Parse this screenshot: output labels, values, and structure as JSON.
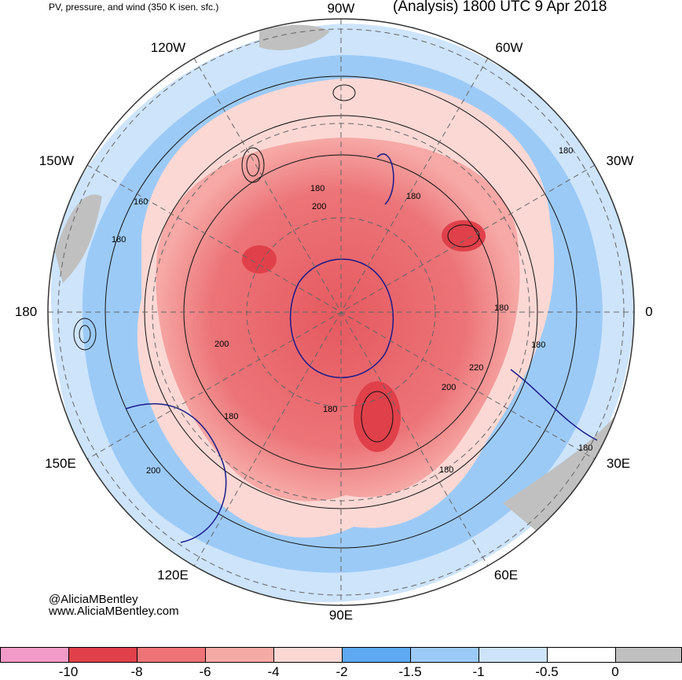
{
  "header": {
    "left_title": "PV, pressure, and wind (350 K isen. sfc.)",
    "right_title": "(Analysis) 1800 UTC 9 Apr 2018"
  },
  "longitude_labels": {
    "w90": "90W",
    "w120": "120W",
    "w60": "60W",
    "w150": "150W",
    "w30": "30W",
    "l180": "180",
    "l0": "0",
    "e150": "150E",
    "e30": "30E",
    "e120": "120E",
    "e60": "60E",
    "e90": "90E"
  },
  "contour_labels": [
    "180",
    "200",
    "180",
    "160",
    "180",
    "180",
    "180",
    "200",
    "180",
    "220",
    "200",
    "180",
    "180",
    "200",
    "180",
    "180"
  ],
  "credits": {
    "handle": "@AliciaMBentley",
    "website": "www.AliciaMBentley.com"
  },
  "colorbar": {
    "colors": [
      "#f39bc8",
      "#e0404a",
      "#ee7377",
      "#f6aaa6",
      "#fbd8d4",
      "#5ea9f2",
      "#9ccaf7",
      "#cde4fb",
      "#ffffff",
      "#c0c0c0"
    ],
    "ticks": [
      "-10",
      "-8",
      "-6",
      "-4",
      "-2",
      "-1.5",
      "-1",
      "-0.5",
      "0"
    ]
  }
}
